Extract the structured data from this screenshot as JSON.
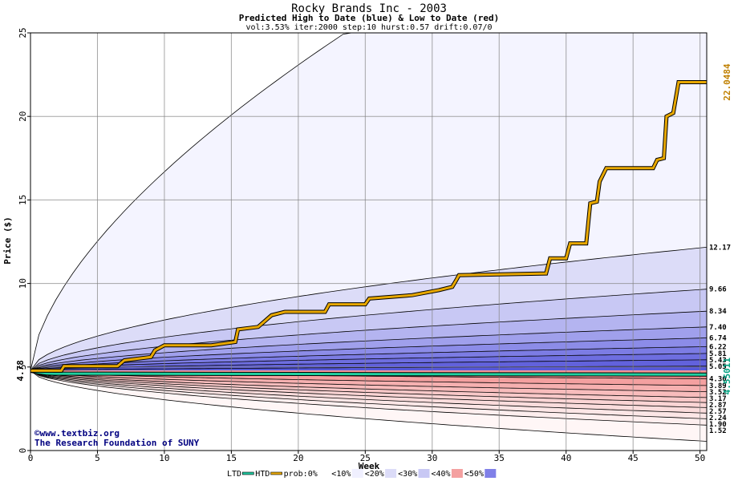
{
  "chart_data": {
    "type": "area",
    "title": "Rocky Brands Inc - 2003",
    "subtitle": "Predicted High to Date (blue) &  Low to Date (red)",
    "params": "vol:3.53% iter:2000 step:10 hurst:0.57 drift:0.07/0",
    "xlabel": "Week",
    "ylabel": "Price ($)",
    "xlim": [
      0,
      50.5
    ],
    "ylim": [
      0,
      25
    ],
    "xticks": [
      0,
      5,
      10,
      15,
      20,
      25,
      30,
      35,
      40,
      45,
      50
    ],
    "yticks": [
      0,
      5,
      10,
      15,
      20,
      25
    ],
    "grid": true,
    "start_price": 4.78,
    "start_label": "4.78",
    "final_high": 22.0484,
    "final_high_label": "22.0484",
    "final_low": 4.55011,
    "final_low_label": "4.55011",
    "right_labels": [
      {
        "value": 12.17,
        "label": "12.17"
      },
      {
        "value": 9.66,
        "label": "9.66"
      },
      {
        "value": 8.34,
        "label": "8.34"
      },
      {
        "value": 7.4,
        "label": "7.40"
      },
      {
        "value": 6.74,
        "label": "6.74"
      },
      {
        "value": 6.22,
        "label": "6.22"
      },
      {
        "value": 5.81,
        "label": "5.81"
      },
      {
        "value": 5.43,
        "label": "5.43"
      },
      {
        "value": 5.05,
        "label": "5.05"
      },
      {
        "value": 4.3,
        "label": "4.30"
      },
      {
        "value": 3.89,
        "label": "3.89"
      },
      {
        "value": 3.52,
        "label": "3.52"
      },
      {
        "value": 3.17,
        "label": "3.17"
      },
      {
        "value": 2.87,
        "label": "2.87"
      },
      {
        "value": 2.57,
        "label": "2.57"
      },
      {
        "value": 2.24,
        "label": "2.24"
      },
      {
        "value": 1.9,
        "label": "1.90"
      },
      {
        "value": 1.52,
        "label": "1.52"
      }
    ],
    "high_quantiles": [
      {
        "final": 25.0,
        "reach_week": 23.5,
        "fill": "#f4f4ff"
      },
      {
        "final": 12.17,
        "fill": "#dcdcf8"
      },
      {
        "final": 9.66,
        "fill": "#c8c8f4"
      },
      {
        "final": 8.34,
        "fill": "#b4b4f0"
      },
      {
        "final": 7.4,
        "fill": "#a0a0ec"
      },
      {
        "final": 6.74,
        "fill": "#8c8ce8"
      },
      {
        "final": 6.22,
        "fill": "#7c7ce4"
      },
      {
        "final": 5.81,
        "fill": "#6e6ee0"
      },
      {
        "final": 5.43,
        "fill": "#6262dc"
      },
      {
        "final": 5.05,
        "fill": "#5858d8"
      }
    ],
    "low_quantiles": [
      {
        "final": 4.3,
        "fill": "#f49090"
      },
      {
        "final": 3.89,
        "fill": "#f4a0a0"
      },
      {
        "final": 3.52,
        "fill": "#f6b0b0"
      },
      {
        "final": 3.17,
        "fill": "#f8bcbc"
      },
      {
        "final": 2.87,
        "fill": "#f8c8c8"
      },
      {
        "final": 2.57,
        "fill": "#fad4d4"
      },
      {
        "final": 2.24,
        "fill": "#fadcdc"
      },
      {
        "final": 1.9,
        "fill": "#fce6e6"
      },
      {
        "final": 1.52,
        "fill": "#fdeeee"
      },
      {
        "final": 0.55,
        "fill": "#fff6f6"
      }
    ],
    "htd_series": {
      "name": "HTD",
      "color": "#e8a800",
      "points": [
        [
          0,
          4.78
        ],
        [
          2.3,
          4.78
        ],
        [
          2.5,
          5.05
        ],
        [
          6.5,
          5.05
        ],
        [
          7,
          5.4
        ],
        [
          9,
          5.6
        ],
        [
          9.3,
          6.0
        ],
        [
          10,
          6.3
        ],
        [
          13.5,
          6.3
        ],
        [
          15.3,
          6.5
        ],
        [
          15.5,
          7.25
        ],
        [
          17,
          7.4
        ],
        [
          18,
          8.1
        ],
        [
          19,
          8.3
        ],
        [
          22,
          8.3
        ],
        [
          22.3,
          8.75
        ],
        [
          25,
          8.75
        ],
        [
          25.3,
          9.1
        ],
        [
          28.5,
          9.3
        ],
        [
          30.5,
          9.6
        ],
        [
          31.5,
          9.8
        ],
        [
          31.8,
          10.2
        ],
        [
          32,
          10.5
        ],
        [
          38.5,
          10.6
        ],
        [
          38.8,
          11.5
        ],
        [
          40,
          11.5
        ],
        [
          40.3,
          12.4
        ],
        [
          41.5,
          12.4
        ],
        [
          41.8,
          14.8
        ],
        [
          42.3,
          14.9
        ],
        [
          42.5,
          16.1
        ],
        [
          43,
          16.9
        ],
        [
          46.5,
          16.9
        ],
        [
          46.8,
          17.4
        ],
        [
          47.3,
          17.5
        ],
        [
          47.5,
          20.0
        ],
        [
          48,
          20.2
        ],
        [
          48.4,
          22.05
        ],
        [
          50.5,
          22.05
        ]
      ]
    },
    "ltd_series": {
      "name": "LTD",
      "color": "#20d0a0",
      "points": [
        [
          0,
          4.78
        ],
        [
          0.5,
          4.7
        ],
        [
          1.2,
          4.62
        ],
        [
          1.8,
          4.6
        ],
        [
          50.5,
          4.55
        ]
      ]
    },
    "legend": [
      {
        "label": "LTD",
        "swatch": "#20c8a0"
      },
      {
        "label": "HTD",
        "swatch": "#e8a800"
      },
      {
        "label": "prob:0%",
        "swatch": "#ffffff"
      },
      {
        "label": "<10%",
        "swatch": "#f0f0ff"
      },
      {
        "label": "<20%",
        "swatch": "#dcdcf8"
      },
      {
        "label": "<30%",
        "swatch": "#c8c8f4"
      },
      {
        "label": "<40%",
        "swatch": "#f4a0a0"
      },
      {
        "label": "<50%",
        "swatch": "#8080e8"
      }
    ]
  },
  "watermark": {
    "line1": "©www.textbiz.org",
    "line2": "The Research Foundation of SUNY"
  },
  "legend_prefix": "LTD"
}
